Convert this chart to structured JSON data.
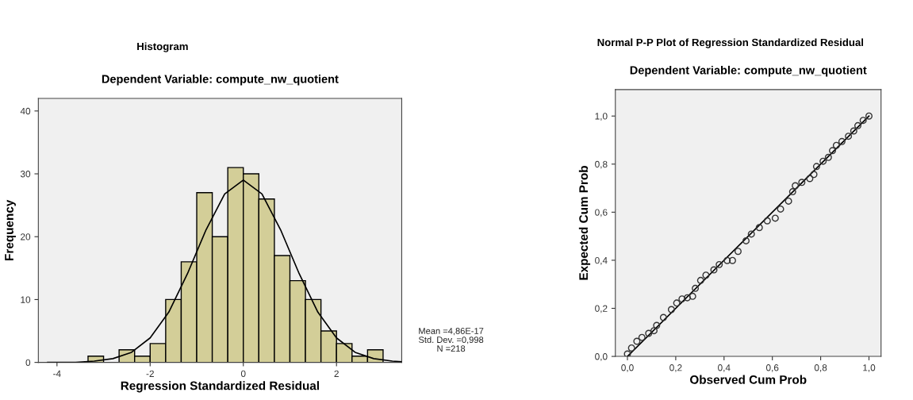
{
  "chart_data": [
    {
      "type": "histogram",
      "title": "Histogram",
      "subtitle": "Dependent Variable: compute_nw_quotient",
      "xlabel": "Regression Standardized Residual",
      "ylabel": "Frequency",
      "bins": [
        -3.3333,
        -3.0,
        -2.6667,
        -2.3333,
        -2.0,
        -1.6667,
        -1.3333,
        -1.0,
        -0.6667,
        -0.3333,
        0.0,
        0.3333,
        0.6667,
        1.0,
        1.3333,
        1.6667,
        2.0,
        2.3333,
        2.6667,
        3.0
      ],
      "values": [
        1,
        0,
        2,
        1,
        3,
        10,
        16,
        27,
        20,
        31,
        30,
        26,
        17,
        13,
        10,
        5,
        3,
        1,
        2
      ],
      "color": "#d3ce98",
      "series": [
        {
          "type": "line",
          "color": "#000000",
          "x": [
            -4.2,
            -3.6,
            -3.2,
            -2.8,
            -2.4,
            -2.0,
            -1.6,
            -1.2,
            -0.8,
            -0.4,
            0.0,
            0.4,
            0.8,
            1.2,
            1.6,
            2.0,
            2.4,
            2.8,
            3.2,
            3.4
          ],
          "values": [
            0.0,
            0.0,
            0.2,
            0.6,
            1.6,
            3.9,
            8.0,
            14.1,
            21.1,
            26.8,
            29.0,
            26.8,
            21.1,
            14.1,
            8.0,
            3.9,
            1.6,
            0.6,
            0.2,
            0.1
          ]
        }
      ],
      "xlim": [
        -4.4,
        3.4
      ],
      "ylim": [
        0,
        42
      ],
      "xticks": [
        -4,
        -2,
        0,
        2
      ],
      "yticks": [
        0,
        10,
        20,
        30,
        40
      ],
      "grid": false,
      "legend": false,
      "annotations": [
        "Mean =4,86E-17",
        "Std. Dev. =0,998",
        "N =218"
      ]
    },
    {
      "type": "scatter",
      "title": "Normal P-P Plot of Regression Standardized Residual",
      "subtitle": "Dependent Variable: compute_nw_quotient",
      "xlabel": "Observed Cum Prob",
      "ylabel": "Expected Cum Prob",
      "series": [
        {
          "type": "scatter",
          "marker": "circle",
          "color": "#333333",
          "x": [
            0.0,
            0.017,
            0.039,
            0.06,
            0.088,
            0.11,
            0.121,
            0.149,
            0.182,
            0.204,
            0.226,
            0.248,
            0.27,
            0.281,
            0.303,
            0.325,
            0.358,
            0.38,
            0.413,
            0.435,
            0.458,
            0.491,
            0.513,
            0.546,
            0.579,
            0.612,
            0.634,
            0.667,
            0.684,
            0.695,
            0.722,
            0.755,
            0.772,
            0.783,
            0.81,
            0.832,
            0.849,
            0.865,
            0.888,
            0.915,
            0.937,
            0.954,
            0.976,
            1.0
          ],
          "values": [
            0.01,
            0.035,
            0.063,
            0.079,
            0.096,
            0.107,
            0.129,
            0.162,
            0.195,
            0.222,
            0.239,
            0.244,
            0.25,
            0.283,
            0.316,
            0.338,
            0.36,
            0.382,
            0.399,
            0.399,
            0.437,
            0.481,
            0.509,
            0.536,
            0.564,
            0.575,
            0.613,
            0.646,
            0.685,
            0.71,
            0.724,
            0.74,
            0.757,
            0.79,
            0.812,
            0.828,
            0.856,
            0.878,
            0.894,
            0.916,
            0.938,
            0.96,
            0.982,
            1.0
          ]
        },
        {
          "type": "line",
          "color": "#000000",
          "x": [
            0.0,
            1.0
          ],
          "values": [
            0.0,
            1.0
          ]
        }
      ],
      "xlim": [
        -0.05,
        1.05
      ],
      "ylim": [
        0,
        1.11
      ],
      "xticks": [
        {
          "value": 0,
          "label": "0,0"
        },
        {
          "value": 0.2,
          "label": "0,2"
        },
        {
          "value": 0.4,
          "label": "0,4"
        },
        {
          "value": 0.6,
          "label": "0,6"
        },
        {
          "value": 0.8,
          "label": "0,8"
        },
        {
          "value": 1.0,
          "label": "1,0"
        }
      ],
      "yticks": [
        {
          "value": 0,
          "label": "0,0"
        },
        {
          "value": 0.2,
          "label": "0,2"
        },
        {
          "value": 0.4,
          "label": "0,4"
        },
        {
          "value": 0.6,
          "label": "0,6"
        },
        {
          "value": 0.8,
          "label": "0,8"
        },
        {
          "value": 1.0,
          "label": "1,0"
        }
      ],
      "grid": false,
      "legend": false
    }
  ]
}
